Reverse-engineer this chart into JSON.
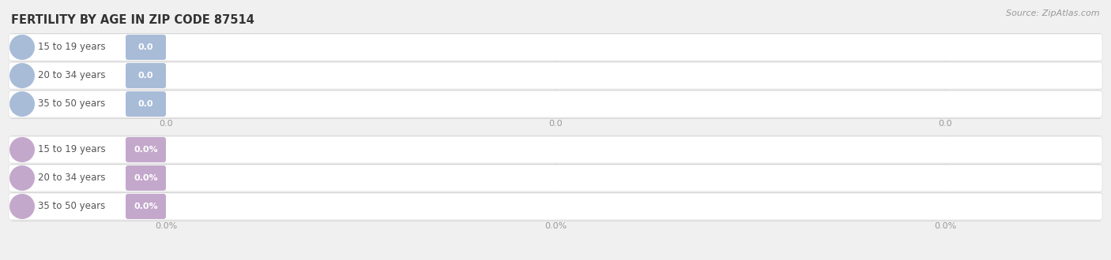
{
  "title": "FERTILITY BY AGE IN ZIP CODE 87514",
  "source": "Source: ZipAtlas.com",
  "top_section": {
    "categories": [
      "15 to 19 years",
      "20 to 34 years",
      "35 to 50 years"
    ],
    "values": [
      0.0,
      0.0,
      0.0
    ],
    "bar_color": "#a8bcd8",
    "label_bg": "#eef2f8",
    "tick_labels": [
      "0.0",
      "0.0",
      "0.0"
    ]
  },
  "bottom_section": {
    "categories": [
      "15 to 19 years",
      "20 to 34 years",
      "35 to 50 years"
    ],
    "values": [
      0.0,
      0.0,
      0.0
    ],
    "bar_color": "#c4a8cc",
    "label_bg": "#f2eef5",
    "tick_labels": [
      "0.0%",
      "0.0%",
      "0.0%"
    ]
  },
  "bg_color": "#f0f0f0",
  "title_fontsize": 10.5,
  "label_fontsize": 8.5,
  "source_fontsize": 8,
  "tick_fontsize": 8
}
